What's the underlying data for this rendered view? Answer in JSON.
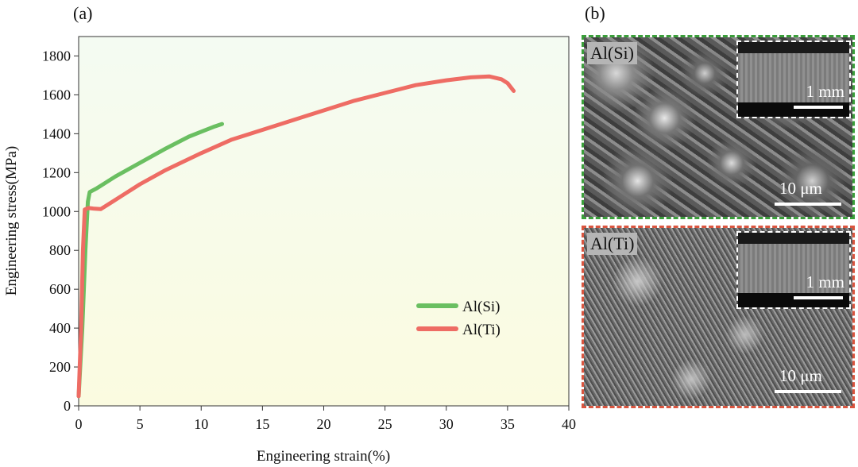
{
  "panel_a_label": "(a)",
  "panel_b_label": "(b)",
  "chart_data": {
    "type": "line",
    "xlabel": "Engineering strain(%)",
    "ylabel": "Engineering stress(MPa)",
    "xlim": [
      0,
      40
    ],
    "ylim": [
      0,
      1900
    ],
    "xticks": [
      0,
      5,
      10,
      15,
      20,
      25,
      30,
      35,
      40
    ],
    "yticks": [
      0,
      200,
      400,
      600,
      800,
      1000,
      1200,
      1400,
      1600,
      1800
    ],
    "legend_position": "lower-right",
    "grid": false,
    "background": "gradient light-green to pale-yellow",
    "series": [
      {
        "name": "Al(Si)",
        "color": "#6abf61",
        "points": [
          [
            0,
            50
          ],
          [
            0.3,
            400
          ],
          [
            0.55,
            800
          ],
          [
            0.75,
            1050
          ],
          [
            0.9,
            1100
          ],
          [
            1.5,
            1120
          ],
          [
            3,
            1180
          ],
          [
            5,
            1250
          ],
          [
            7,
            1320
          ],
          [
            9,
            1385
          ],
          [
            11,
            1435
          ],
          [
            11.7,
            1450
          ]
        ]
      },
      {
        "name": "Al(Ti)",
        "color": "#ee6c64",
        "points": [
          [
            0,
            50
          ],
          [
            0.2,
            400
          ],
          [
            0.35,
            800
          ],
          [
            0.5,
            1010
          ],
          [
            0.8,
            1018
          ],
          [
            1.2,
            1015
          ],
          [
            1.8,
            1012
          ],
          [
            2.5,
            1040
          ],
          [
            3.5,
            1080
          ],
          [
            5,
            1140
          ],
          [
            7,
            1210
          ],
          [
            10,
            1300
          ],
          [
            12.5,
            1370
          ],
          [
            15,
            1420
          ],
          [
            17.5,
            1470
          ],
          [
            20,
            1520
          ],
          [
            22.5,
            1570
          ],
          [
            25,
            1610
          ],
          [
            27.5,
            1650
          ],
          [
            30,
            1675
          ],
          [
            32,
            1690
          ],
          [
            33.5,
            1695
          ],
          [
            34.5,
            1680
          ],
          [
            35,
            1660
          ],
          [
            35.5,
            1620
          ]
        ]
      }
    ]
  },
  "panel_b": {
    "top": {
      "tag": "Al(Si)",
      "inset_scale": "1 mm",
      "main_scale": "10 μm",
      "frame_color": "#3a9e3a"
    },
    "bottom": {
      "tag": "Al(Ti)",
      "inset_scale": "1 mm",
      "main_scale": "10 μm",
      "frame_color": "#d9553f"
    }
  }
}
